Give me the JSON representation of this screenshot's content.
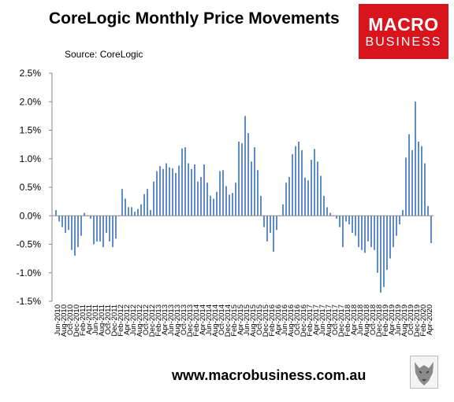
{
  "header": {
    "title": "CoreLogic Monthly Price Movements",
    "source": "Source: CoreLogic"
  },
  "logo": {
    "line1": "MACRO",
    "line2": "BUSINESS",
    "color": "#d8141c"
  },
  "footer": {
    "url": "www.macrobusiness.com.au"
  },
  "chart_data": {
    "type": "bar",
    "title": "CoreLogic Monthly Price Movements",
    "xlabel": "",
    "ylabel": "",
    "ylim": [
      -1.5,
      2.5
    ],
    "yticks": [
      "2.5%",
      "2.0%",
      "1.5%",
      "1.0%",
      "0.5%",
      "0.0%",
      "-0.5%",
      "-1.0%",
      "-1.5%"
    ],
    "grid": false,
    "bar_color": "#4f7fbf",
    "tick_labels": [
      "Jun-2010",
      "Aug-2010",
      "Oct-2010",
      "Dec-2010",
      "Feb-2011",
      "Apr-2011",
      "Jun-2011",
      "Aug-2011",
      "Oct-2011",
      "Dec-2011",
      "Feb-2012",
      "Apr-2012",
      "Jun-2012",
      "Aug-2012",
      "Oct-2012",
      "Dec-2012",
      "Feb-2013",
      "Apr-2013",
      "Jun-2013",
      "Aug-2013",
      "Oct-2013",
      "Dec-2013",
      "Feb-2014",
      "Apr-2014",
      "Jun-2014",
      "Aug-2014",
      "Oct-2014",
      "Dec-2014",
      "Feb-2015",
      "Apr-2015",
      "Jun-2015",
      "Aug-2015",
      "Oct-2015",
      "Dec-2015",
      "Feb-2016",
      "Apr-2016",
      "Jun-2016",
      "Aug-2016",
      "Oct-2016",
      "Dec-2016",
      "Feb-2017",
      "Apr-2017",
      "Jun-2017",
      "Aug-2017",
      "Oct-2017",
      "Dec-2017",
      "Feb-2018",
      "Apr-2018",
      "Jun-2018",
      "Aug-2018",
      "Oct-2018",
      "Dec-2018",
      "Feb-2019",
      "Apr-2019",
      "Jun-2019",
      "Aug-2019",
      "Oct-2019",
      "Dec-2019",
      "Feb-2020",
      "Apr-2020"
    ],
    "values": [
      0.1,
      -0.1,
      -0.2,
      -0.3,
      -0.25,
      -0.6,
      -0.7,
      -0.55,
      -0.35,
      0.05,
      0.0,
      -0.05,
      -0.5,
      -0.45,
      -0.45,
      -0.55,
      -0.3,
      -0.45,
      -0.55,
      -0.4,
      0.0,
      0.47,
      0.3,
      0.15,
      0.15,
      0.07,
      0.12,
      0.2,
      0.38,
      0.47,
      0.1,
      0.6,
      0.78,
      0.87,
      0.82,
      0.92,
      0.85,
      0.83,
      0.75,
      0.88,
      1.18,
      1.2,
      0.92,
      0.82,
      0.9,
      0.6,
      0.68,
      0.9,
      0.58,
      0.35,
      0.3,
      0.42,
      0.78,
      0.8,
      0.52,
      0.37,
      0.4,
      0.58,
      1.3,
      1.27,
      1.75,
      1.45,
      0.95,
      1.2,
      0.8,
      0.35,
      -0.2,
      -0.45,
      -0.3,
      -0.63,
      -0.25,
      0.0,
      0.2,
      0.58,
      0.68,
      1.08,
      1.22,
      1.3,
      1.15,
      0.67,
      0.62,
      0.98,
      1.17,
      0.95,
      0.7,
      0.35,
      0.15,
      0.05,
      0.0,
      -0.05,
      -0.2,
      -0.55,
      -0.1,
      -0.15,
      -0.3,
      -0.35,
      -0.55,
      -0.6,
      -0.65,
      -0.45,
      -0.55,
      -0.6,
      -1.0,
      -1.35,
      -1.25,
      -0.95,
      -0.75,
      -0.55,
      -0.35,
      -0.15,
      0.1,
      1.02,
      1.43,
      1.15,
      2.0,
      1.3,
      1.22,
      0.92,
      0.17,
      -0.48
    ]
  }
}
